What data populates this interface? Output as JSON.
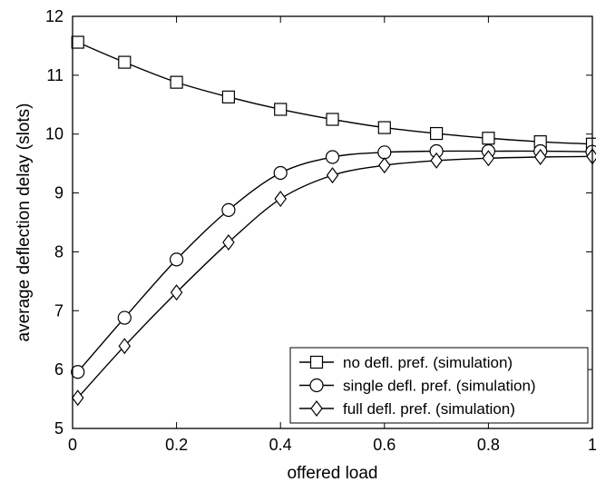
{
  "chart_data": {
    "type": "line",
    "xlabel": "offered load",
    "ylabel": "average deflection delay (slots)",
    "xlim": [
      0,
      1
    ],
    "ylim": [
      5,
      12
    ],
    "xticks": [
      0,
      0.2,
      0.4,
      0.6,
      0.8,
      1
    ],
    "xtick_labels": [
      "0",
      "0.2",
      "0.4",
      "0.6",
      "0.8",
      "1"
    ],
    "yticks": [
      5,
      6,
      7,
      8,
      9,
      10,
      11,
      12
    ],
    "ytick_labels": [
      "5",
      "6",
      "7",
      "8",
      "9",
      "10",
      "11",
      "12"
    ],
    "grid": false,
    "legend_position": "bottom-right",
    "x": [
      0.01,
      0.1,
      0.2,
      0.3,
      0.4,
      0.5,
      0.6,
      0.7,
      0.8,
      0.9,
      1.0
    ],
    "series": [
      {
        "name": "no defl. pref. (simulation)",
        "marker": "square",
        "values": [
          11.56,
          11.22,
          10.88,
          10.63,
          10.42,
          10.25,
          10.11,
          10.01,
          9.93,
          9.87,
          9.83
        ]
      },
      {
        "name": "single defl. pref. (simulation)",
        "marker": "circle",
        "values": [
          5.96,
          6.88,
          7.87,
          8.71,
          9.34,
          9.61,
          9.69,
          9.71,
          9.71,
          9.71,
          9.7
        ]
      },
      {
        "name": "full defl. pref. (simulation)",
        "marker": "diamond",
        "values": [
          5.52,
          6.4,
          7.31,
          8.16,
          8.9,
          9.3,
          9.47,
          9.55,
          9.59,
          9.61,
          9.62
        ]
      }
    ]
  }
}
